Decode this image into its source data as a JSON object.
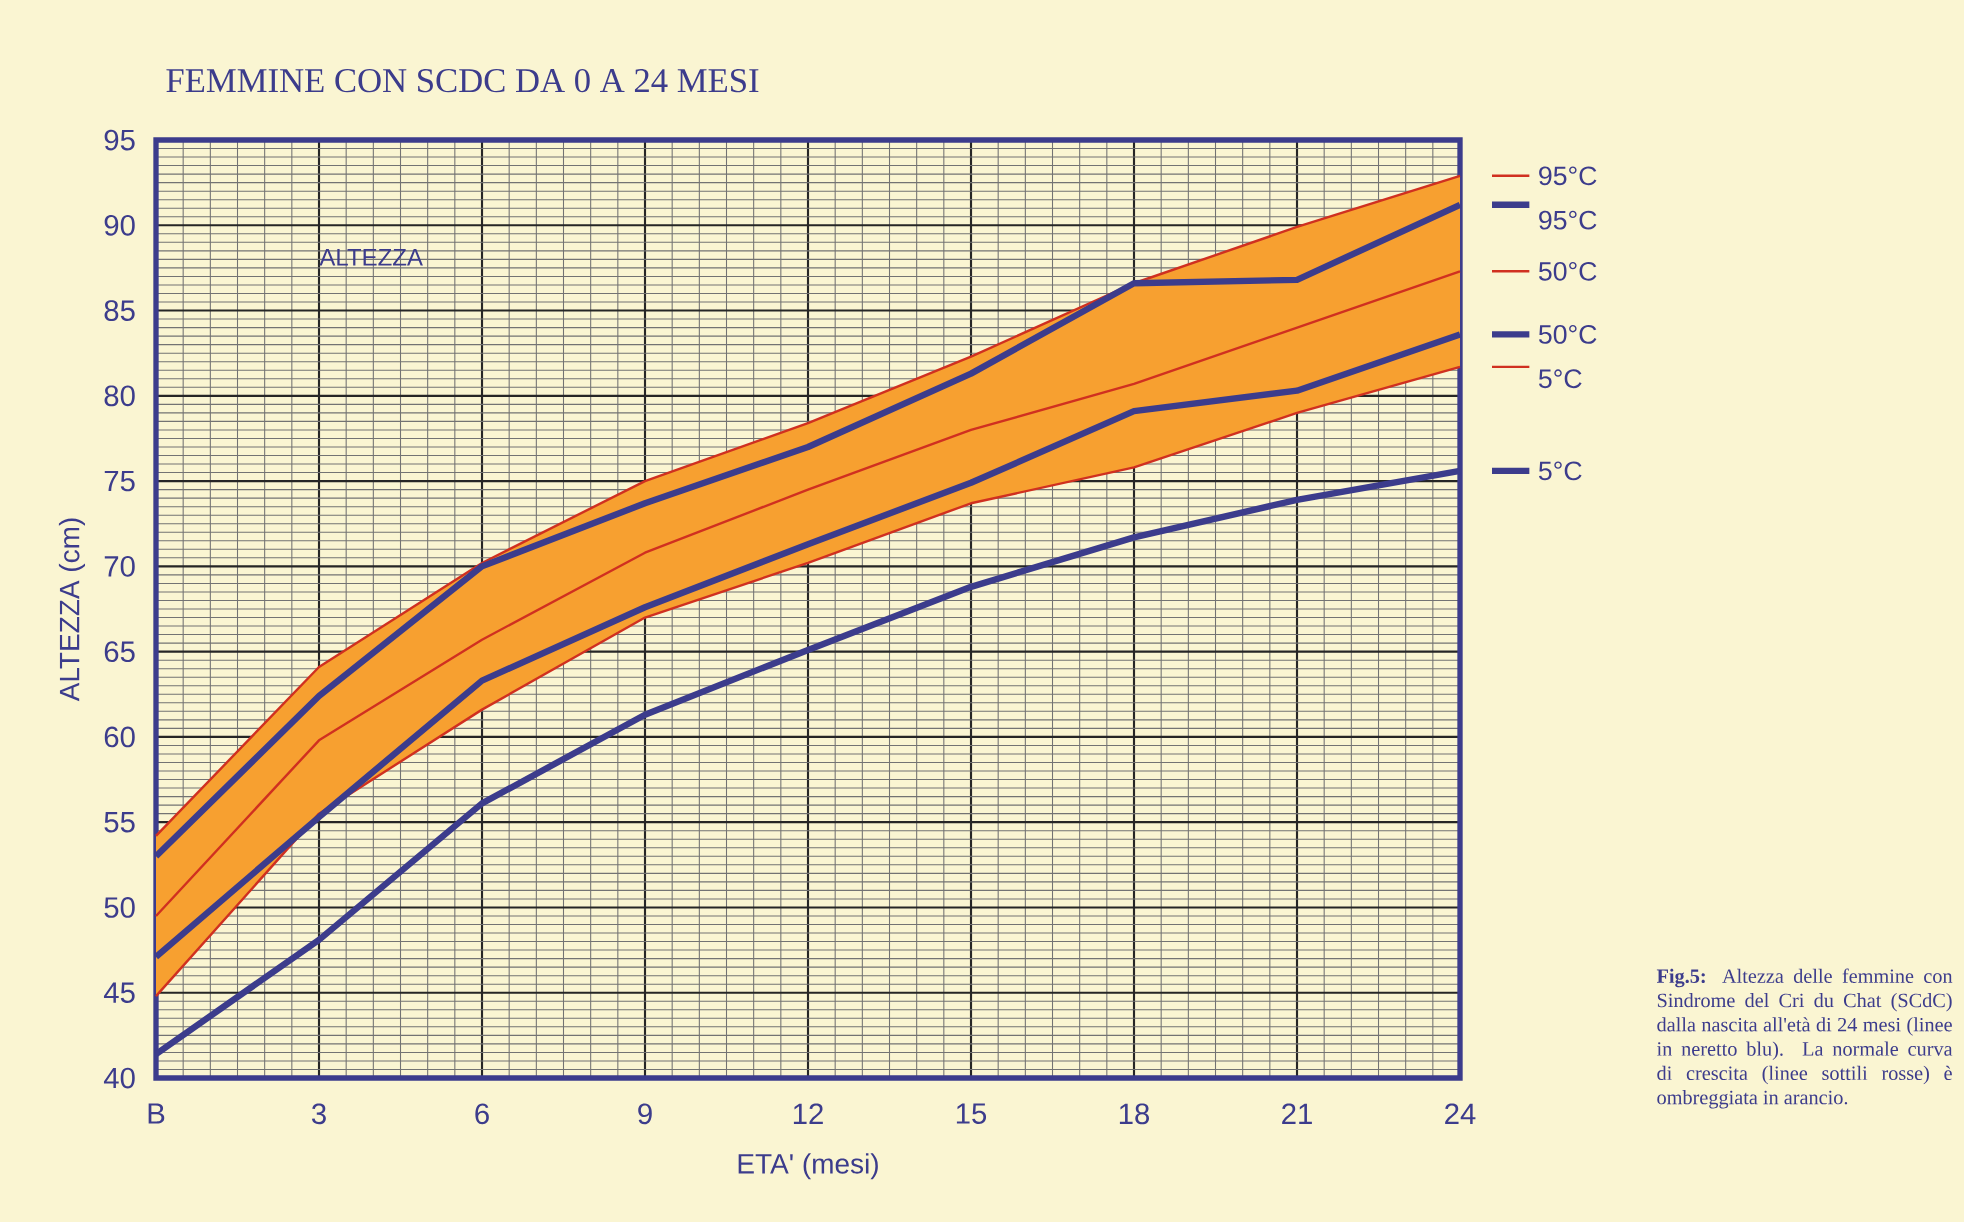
{
  "chart_data": {
    "type": "line",
    "title": "FEMMINE CON SCDC DA 0 A 24 MESI",
    "xlabel": "ETA' (mesi)",
    "ylabel": "ALTEZZA (cm)",
    "x": [
      0,
      3,
      6,
      9,
      12,
      15,
      18,
      21,
      24
    ],
    "series": [
      {
        "name": "95°C",
        "color": "#d03020",
        "values": [
          54.2,
          64.1,
          70.2,
          75.0,
          78.4,
          82.3,
          86.6,
          89.9,
          92.9
        ]
      },
      {
        "name": "95°C",
        "color": "#3c3c8c",
        "values": [
          53.0,
          62.4,
          70.0,
          73.7,
          77.0,
          81.3,
          86.6,
          86.8,
          91.2
        ]
      },
      {
        "name": "50°C",
        "color": "#d03020",
        "values": [
          49.5,
          59.8,
          65.7,
          70.8,
          74.5,
          78.0,
          80.7,
          84.0,
          87.3
        ],
        "lower": [
          44.8,
          55.5,
          61.6,
          67.0,
          70.2,
          73.7,
          75.8,
          79.0,
          81.7
        ],
        "upper": [
          54.2,
          64.1,
          70.2,
          75.0,
          78.4,
          82.3,
          86.6,
          89.9,
          92.9
        ]
      },
      {
        "name": "50°C",
        "color": "#3c3c8c",
        "values": [
          47.1,
          55.3,
          63.3,
          67.6,
          71.3,
          74.9,
          79.1,
          80.3,
          83.6
        ]
      },
      {
        "name": "5°C",
        "color": "#d03020",
        "values": [
          44.8,
          55.5,
          61.6,
          67.0,
          70.2,
          73.7,
          75.8,
          79.0,
          81.7
        ]
      },
      {
        "name": "5°C",
        "color": "#3c3c8c",
        "values": [
          41.4,
          48.1,
          56.1,
          61.3,
          65.1,
          68.8,
          71.7,
          73.9,
          75.6
        ]
      }
    ],
    "xlim": [
      0,
      24
    ],
    "ylim": [
      40,
      95
    ],
    "xticks": [
      {
        "value": 0,
        "label": "B"
      },
      3,
      6,
      9,
      12,
      15,
      18,
      21,
      24
    ],
    "yticks": [
      40,
      45,
      50,
      55,
      60,
      65,
      70,
      75,
      80,
      85,
      90,
      95
    ],
    "grid": true,
    "legend": "right",
    "annotations": [
      "ALTEZZA",
      "**Fig.5:** Altezza delle femmine con Sindrome del Cri du Chat (SCdC) dalla nascita all'età di 24 mesi (linee in neretto blu). La normale curva di crescita (linee sottili rosse) è ombreggiata in arancio."
    ]
  }
}
